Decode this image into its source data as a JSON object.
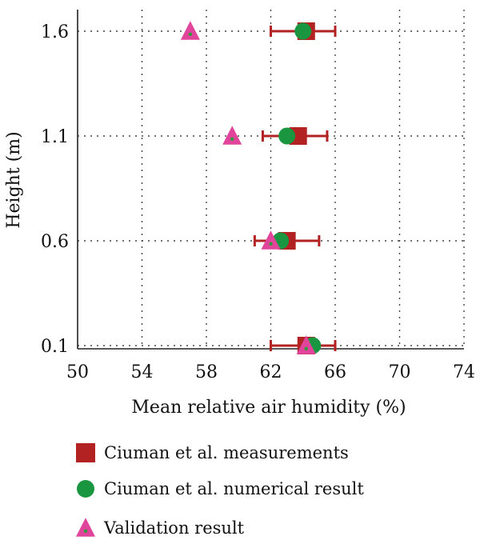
{
  "chart_data": {
    "type": "scatter",
    "title": "",
    "xlabel": "Mean relative air humidity (%)",
    "ylabel": "Height (m)",
    "xlim": [
      50,
      74
    ],
    "xticks": [
      "50",
      "54",
      "58",
      "62",
      "66",
      "70",
      "74"
    ],
    "yticks": [
      "0.1",
      "0.6",
      "1.1",
      "1.6"
    ],
    "grid": "dotted",
    "legend_placement": "bottom",
    "series": [
      {
        "name": "Ciuman et al. measurements",
        "marker": "square",
        "color": "#b22222",
        "points": [
          {
            "x": 64.2,
            "y": 0.1,
            "xerr_low": 62.0,
            "xerr_high": 66.0
          },
          {
            "x": 63.0,
            "y": 0.6,
            "xerr_low": 61.0,
            "xerr_high": 65.0
          },
          {
            "x": 63.7,
            "y": 1.1,
            "xerr_low": 61.5,
            "xerr_high": 65.5
          },
          {
            "x": 64.2,
            "y": 1.6,
            "xerr_low": 62.0,
            "xerr_high": 66.0
          }
        ]
      },
      {
        "name": "Ciuman et al. numerical result",
        "marker": "circle",
        "color": "#1a9641",
        "points": [
          {
            "x": 64.6,
            "y": 0.1
          },
          {
            "x": 62.6,
            "y": 0.6
          },
          {
            "x": 63.0,
            "y": 1.1
          },
          {
            "x": 64.0,
            "y": 1.6
          }
        ]
      },
      {
        "name": "Validation result",
        "marker": "triangle",
        "color": "#e0449b",
        "points": [
          {
            "x": 64.2,
            "y": 0.1
          },
          {
            "x": 62.0,
            "y": 0.6
          },
          {
            "x": 59.6,
            "y": 1.1
          },
          {
            "x": 57.0,
            "y": 1.6
          }
        ]
      }
    ]
  }
}
